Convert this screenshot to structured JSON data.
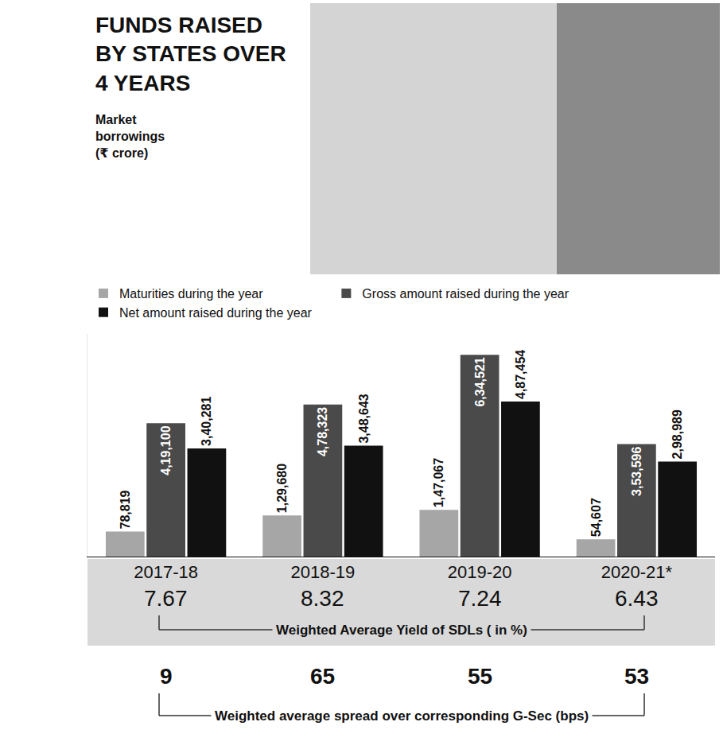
{
  "chart_data": {
    "type": "bar",
    "title": "FUNDS RAISED BY STATES OVER 4 YEARS",
    "subtitle": "Market borrowings (₹ crore)",
    "categories": [
      "2017-18",
      "2018-19",
      "2019-20",
      "2020-21*"
    ],
    "series": [
      {
        "name": "Maturities during the year",
        "color": "#a6a6a6",
        "values": [
          78819,
          129680,
          147067,
          54607
        ],
        "value_labels": [
          "78,819",
          "1,29,680",
          "1,47,067",
          "54,607"
        ]
      },
      {
        "name": "Gross amount raised during the year",
        "color": "#4a4a4a",
        "values": [
          419100,
          478323,
          634521,
          353596
        ],
        "value_labels": [
          "4,19,100",
          "4,78,323",
          "6,34,521",
          "3,53,596"
        ]
      },
      {
        "name": "Net amount raised during the year",
        "color": "#111111",
        "values": [
          340281,
          348643,
          487454,
          298989
        ],
        "value_labels": [
          "3,40,281",
          "3,48,643",
          "4,87,454",
          "2,98,989"
        ]
      }
    ],
    "ylim": [
      0,
      700000
    ],
    "yticks": [],
    "tick_labels": "x",
    "grid": false,
    "legend": "top left",
    "data_labels": true,
    "yield_row": {
      "label": "Weighted Average Yield of SDLs ( in %)",
      "values": [
        7.67,
        8.32,
        7.24,
        6.43
      ]
    },
    "spread_row": {
      "label": "Weighted average spread over corresponding G-Sec (bps)",
      "values": [
        9,
        65,
        55,
        53
      ]
    }
  }
}
